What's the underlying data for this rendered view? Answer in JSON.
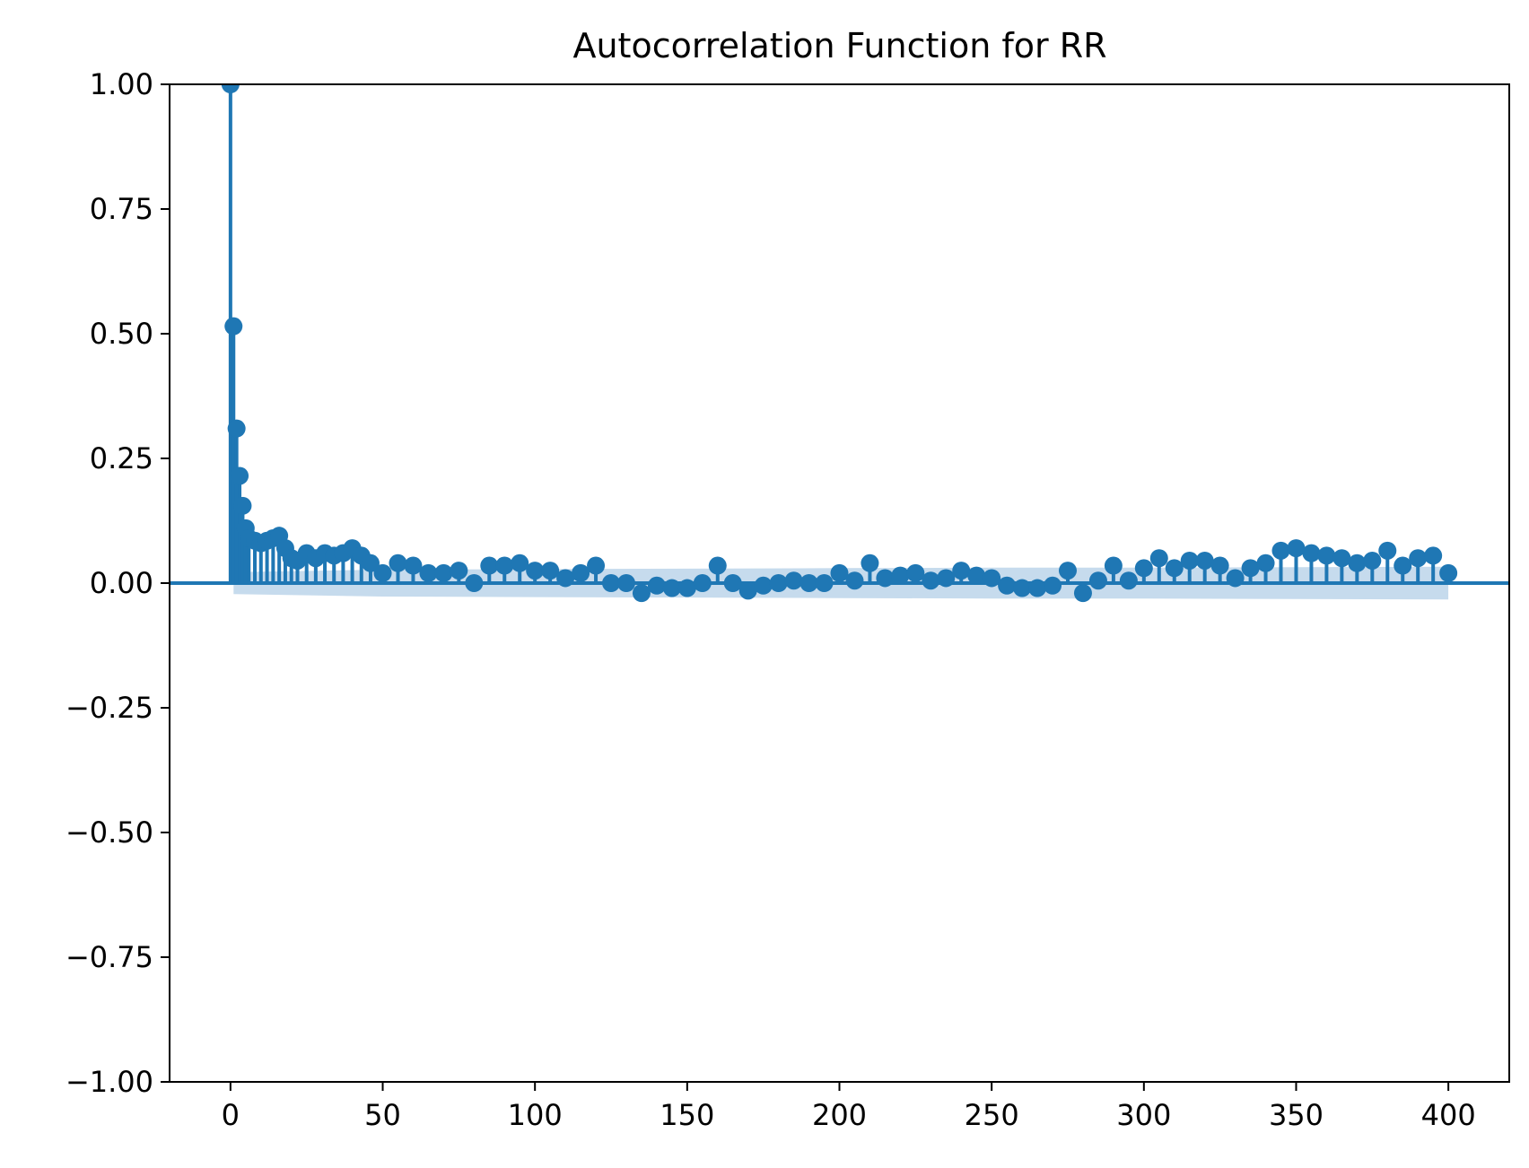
{
  "chart_data": {
    "type": "scatter",
    "title": "Autocorrelation Function for RR",
    "xlabel": "",
    "ylabel": "",
    "xlim": [
      -20,
      420
    ],
    "ylim": [
      -1.0,
      1.0
    ],
    "grid": false,
    "legend": "none",
    "x_ticks": [
      0,
      50,
      100,
      150,
      200,
      250,
      300,
      350,
      400
    ],
    "x_tick_labels": [
      "0",
      "50",
      "100",
      "150",
      "200",
      "250",
      "300",
      "350",
      "400"
    ],
    "y_ticks": [
      1.0,
      0.75,
      0.5,
      0.25,
      0.0,
      -0.25,
      -0.5,
      -0.75,
      -1.0
    ],
    "y_tick_labels": [
      "1.00",
      "0.75",
      "0.50",
      "0.25",
      "0.00",
      "−0.25",
      "−0.50",
      "−0.75",
      "−1.00"
    ],
    "colors": {
      "stem": "#1f77b4",
      "marker": "#1f77b4",
      "zero_line": "#1f77b4",
      "confidence_band": "#c6dbed"
    },
    "series": [
      {
        "name": "",
        "kind": "stem",
        "lags": [
          0,
          1,
          2,
          3,
          4,
          5,
          6,
          8,
          10,
          12,
          14,
          16,
          18,
          20,
          22,
          25,
          28,
          31,
          34,
          37,
          40,
          43,
          46,
          50,
          55,
          60,
          65,
          70,
          75,
          80,
          85,
          90,
          95,
          100,
          105,
          110,
          115,
          120,
          125,
          130,
          135,
          140,
          145,
          150,
          155,
          160,
          165,
          170,
          175,
          180,
          185,
          190,
          195,
          200,
          205,
          210,
          215,
          220,
          225,
          230,
          235,
          240,
          245,
          250,
          255,
          260,
          265,
          270,
          275,
          280,
          285,
          290,
          295,
          300,
          305,
          310,
          315,
          320,
          325,
          330,
          335,
          340,
          345,
          350,
          355,
          360,
          365,
          370,
          375,
          380,
          385,
          390,
          395,
          400
        ],
        "values": [
          1.0,
          0.515,
          0.31,
          0.215,
          0.155,
          0.11,
          0.09,
          0.085,
          0.08,
          0.085,
          0.09,
          0.095,
          0.07,
          0.05,
          0.045,
          0.06,
          0.05,
          0.06,
          0.055,
          0.06,
          0.07,
          0.055,
          0.04,
          0.02,
          0.04,
          0.035,
          0.02,
          0.02,
          0.025,
          0.0,
          0.035,
          0.035,
          0.04,
          0.025,
          0.025,
          0.01,
          0.02,
          0.035,
          0.0,
          0.0,
          -0.02,
          -0.005,
          -0.01,
          -0.01,
          0.0,
          0.035,
          0.0,
          -0.015,
          -0.005,
          0.0,
          0.005,
          0.0,
          0.0,
          0.02,
          0.005,
          0.04,
          0.01,
          0.015,
          0.02,
          0.005,
          0.01,
          0.025,
          0.015,
          0.01,
          -0.005,
          -0.01,
          -0.01,
          -0.005,
          0.025,
          -0.02,
          0.005,
          0.035,
          0.005,
          0.03,
          0.05,
          0.03,
          0.045,
          0.045,
          0.035,
          0.01,
          0.03,
          0.04,
          0.065,
          0.07,
          0.06,
          0.055,
          0.05,
          0.04,
          0.045,
          0.065,
          0.035,
          0.05,
          0.055,
          0.02
        ]
      }
    ],
    "confidence_band": {
      "lags": [
        1,
        50,
        100,
        150,
        200,
        250,
        300,
        350,
        400
      ],
      "upper": [
        0.022,
        0.027,
        0.028,
        0.029,
        0.03,
        0.031,
        0.031,
        0.032,
        0.033
      ],
      "lower": [
        -0.022,
        -0.027,
        -0.028,
        -0.029,
        -0.03,
        -0.031,
        -0.031,
        -0.032,
        -0.033
      ]
    }
  }
}
